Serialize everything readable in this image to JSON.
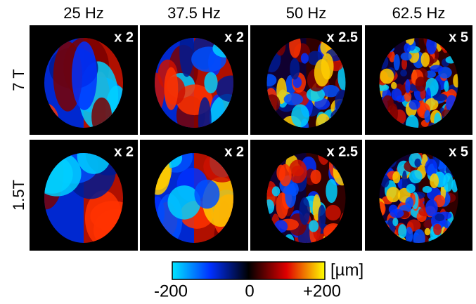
{
  "columns": [
    "25 Hz",
    "37.5 Hz",
    "50 Hz",
    "62.5 Hz"
  ],
  "rows": [
    {
      "label": "7 T",
      "cells": [
        "x 2",
        "x 2",
        "x 2.5",
        "x 5"
      ]
    },
    {
      "label": "1.5T",
      "cells": [
        "x 2",
        "x 2",
        "x 2.5",
        "x 5"
      ]
    }
  ],
  "colorbar": {
    "ticks": [
      "-200",
      "0",
      "+200"
    ],
    "unit": "[µm]"
  }
}
